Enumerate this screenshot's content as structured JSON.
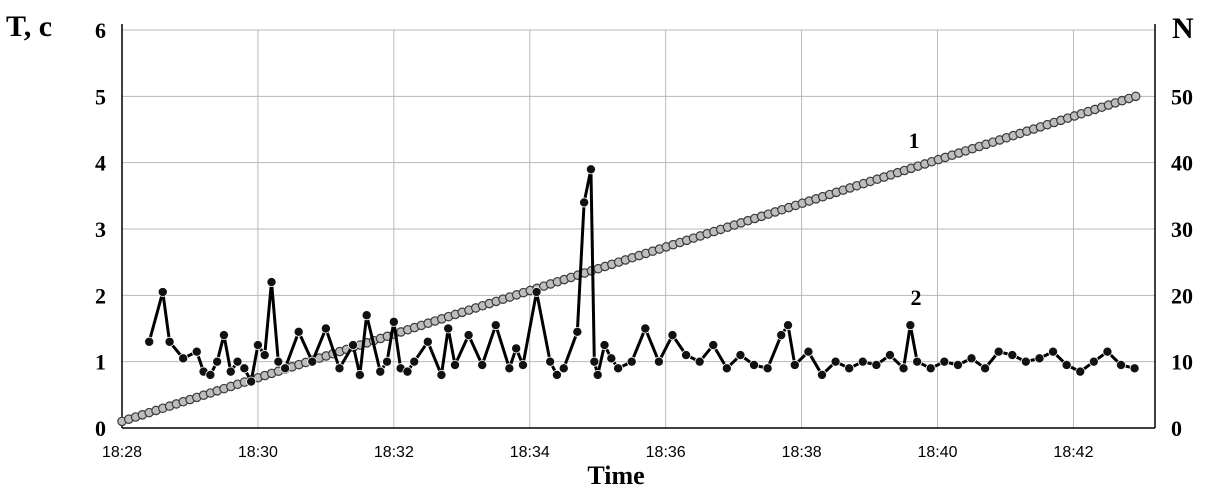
{
  "chart_data": {
    "type": "line",
    "left_axis_title": "T, c",
    "right_axis_title": "N",
    "xlabel": "Time",
    "x_ticks": [
      "18:28",
      "18:30",
      "18:32",
      "18:34",
      "18:36",
      "18:38",
      "18:40",
      "18:42"
    ],
    "x_range_minutes": [
      0,
      15.2
    ],
    "y_left_ticks": [
      "0",
      "1",
      "2",
      "3",
      "4",
      "5",
      "6"
    ],
    "ylim_left": [
      0,
      6
    ],
    "y_right_ticks": [
      "0",
      "10",
      "20",
      "30",
      "40",
      "50"
    ],
    "ylim_right": [
      0,
      60
    ],
    "grid": true,
    "series": [
      {
        "label": "1",
        "axis": "right",
        "color": "#888888",
        "x_start": "18:28:00",
        "x_end": "18:42:55",
        "y_start": 1,
        "y_end": 50,
        "points": 150
      },
      {
        "label": "2",
        "axis": "left",
        "color": "#000000",
        "x": [
          "18:28:24",
          "18:28:36",
          "18:28:42",
          "18:28:54",
          "18:29:06",
          "18:29:12",
          "18:29:18",
          "18:29:24",
          "18:29:30",
          "18:29:36",
          "18:29:42",
          "18:29:48",
          "18:29:54",
          "18:30:00",
          "18:30:06",
          "18:30:12",
          "18:30:18",
          "18:30:24",
          "18:30:36",
          "18:30:48",
          "18:31:00",
          "18:31:12",
          "18:31:24",
          "18:31:30",
          "18:31:36",
          "18:31:48",
          "18:31:54",
          "18:32:00",
          "18:32:06",
          "18:32:12",
          "18:32:18",
          "18:32:30",
          "18:32:42",
          "18:32:48",
          "18:32:54",
          "18:33:06",
          "18:33:18",
          "18:33:30",
          "18:33:42",
          "18:33:48",
          "18:33:54",
          "18:34:06",
          "18:34:18",
          "18:34:24",
          "18:34:30",
          "18:34:42",
          "18:34:48",
          "18:34:54",
          "18:34:57",
          "18:35:00",
          "18:35:06",
          "18:35:12",
          "18:35:18",
          "18:35:30",
          "18:35:42",
          "18:35:54",
          "18:36:06",
          "18:36:18",
          "18:36:30",
          "18:36:42",
          "18:36:54",
          "18:37:06",
          "18:37:18",
          "18:37:30",
          "18:37:42",
          "18:37:48",
          "18:37:54",
          "18:38:06",
          "18:38:18",
          "18:38:30",
          "18:38:42",
          "18:38:54",
          "18:39:06",
          "18:39:18",
          "18:39:30",
          "18:39:36",
          "18:39:42",
          "18:39:54",
          "18:40:06",
          "18:40:18",
          "18:40:30",
          "18:40:42",
          "18:40:54",
          "18:41:06",
          "18:41:18",
          "18:41:30",
          "18:41:42",
          "18:41:54",
          "18:42:06",
          "18:42:18",
          "18:42:30",
          "18:42:42",
          "18:42:54"
        ],
        "y": [
          1.3,
          2.05,
          1.3,
          1.05,
          1.15,
          0.85,
          0.8,
          1.0,
          1.4,
          0.85,
          1.0,
          0.9,
          0.7,
          1.25,
          1.1,
          2.2,
          1.0,
          0.9,
          1.45,
          1.0,
          1.5,
          0.9,
          1.25,
          0.8,
          1.7,
          0.85,
          1.0,
          1.6,
          0.9,
          0.85,
          1.0,
          1.3,
          0.8,
          1.5,
          0.95,
          1.4,
          0.95,
          1.55,
          0.9,
          1.2,
          0.95,
          2.05,
          1.0,
          0.8,
          0.9,
          1.45,
          3.4,
          3.9,
          1.0,
          0.8,
          1.25,
          1.05,
          0.9,
          1.0,
          1.5,
          1.0,
          1.4,
          1.1,
          1.0,
          1.25,
          0.9,
          1.1,
          0.95,
          0.9,
          1.4,
          1.55,
          0.95,
          1.15,
          0.8,
          1.0,
          0.9,
          1.0,
          0.95,
          1.1,
          0.9,
          1.55,
          1.0,
          0.9,
          1.0,
          0.95,
          1.05,
          0.9,
          1.15,
          1.1,
          1.0,
          1.05,
          1.15,
          0.95,
          0.85,
          1.0,
          1.15,
          0.95,
          0.9
        ]
      }
    ]
  }
}
